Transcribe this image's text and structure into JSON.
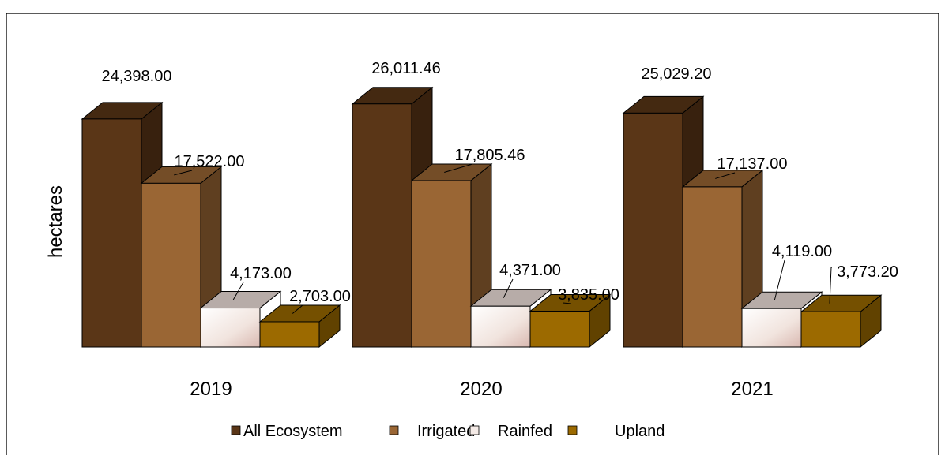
{
  "chart_data": {
    "type": "bar",
    "style": "3d-clustered-column",
    "title": "",
    "xlabel": "",
    "ylabel": "hectares",
    "categories": [
      "2019",
      "2020",
      "2021"
    ],
    "ylim": [
      0,
      30000
    ],
    "grid": false,
    "legend_position": "bottom",
    "series": [
      {
        "name": "All Ecosystem",
        "values": [
          24398.0,
          26011.46,
          25029.2
        ],
        "labels": [
          "24,398.00",
          "26,011.46",
          "25,029.20"
        ],
        "color": "#5a3617"
      },
      {
        "name": "Irrigated",
        "values": [
          17522.0,
          17805.46,
          17137.0
        ],
        "labels": [
          "17,522.00",
          "17,805.46",
          "17,137.00"
        ],
        "color": "#9a6634"
      },
      {
        "name": "Rainfed",
        "values": [
          4173.0,
          4371.0,
          4119.0
        ],
        "labels": [
          "4,173.00",
          "4,371.00",
          "4,119.00"
        ],
        "color": "#ecdcd6"
      },
      {
        "name": "Upland",
        "values": [
          2703.0,
          3835.0,
          3773.2
        ],
        "labels": [
          "2,703.00",
          "3,835.00",
          "3,773.20"
        ],
        "color": "#9c6a00"
      }
    ]
  }
}
